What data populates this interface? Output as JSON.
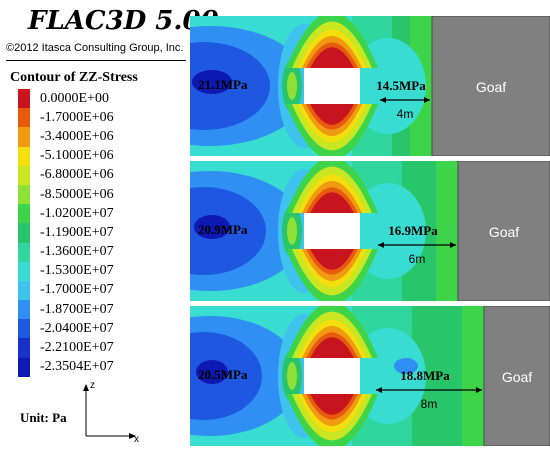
{
  "header": {
    "title": "FLAC3D 5.00",
    "copyright": "©2012 Itasca Consulting Group, Inc."
  },
  "legend": {
    "title": "Contour of ZZ-Stress",
    "items": [
      {
        "label": "0.0000E+00",
        "color": "#c8141e"
      },
      {
        "label": "-1.7000E+06",
        "color": "#e85a0e"
      },
      {
        "label": "-3.4000E+06",
        "color": "#f09a12"
      },
      {
        "label": "-5.1000E+06",
        "color": "#f3df0c"
      },
      {
        "label": "-6.8000E+06",
        "color": "#c8e622"
      },
      {
        "label": "-8.5000E+06",
        "color": "#8ee036"
      },
      {
        "label": "-1.0200E+07",
        "color": "#3ed44a"
      },
      {
        "label": "-1.1900E+07",
        "color": "#28c56a"
      },
      {
        "label": "-1.3600E+07",
        "color": "#30d69e"
      },
      {
        "label": "-1.5300E+07",
        "color": "#38dcd0"
      },
      {
        "label": "-1.7000E+07",
        "color": "#3ec3ef"
      },
      {
        "label": "-1.8700E+07",
        "color": "#2f8ff2"
      },
      {
        "label": "-2.0400E+07",
        "color": "#1f58e0"
      },
      {
        "label": "-2.2100E+07",
        "color": "#1630c8"
      },
      {
        "label": "-2.3504E+07",
        "color": "#0e18b2"
      }
    ],
    "unit": "Unit: Pa"
  },
  "axes": {
    "z": "z",
    "x": "x"
  },
  "panels": [
    {
      "left_label": "21.1MPa",
      "right_label": "14.5MPa",
      "distance": "4m",
      "goaf": "Goaf"
    },
    {
      "left_label": "20.9MPa",
      "right_label": "16.9MPa",
      "distance": "6m",
      "goaf": "Goaf"
    },
    {
      "left_label": "20.5MPa",
      "right_label": "18.8MPa",
      "distance": "8m",
      "goaf": "Goaf"
    }
  ]
}
